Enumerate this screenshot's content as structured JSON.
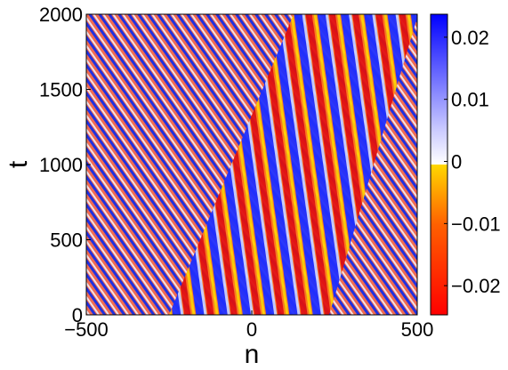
{
  "chart_data": {
    "type": "heatmap",
    "xlabel": "n",
    "ylabel": "t",
    "xlim": [
      -500,
      500
    ],
    "xticks": [
      {
        "value": -500,
        "label": "−500"
      },
      0,
      500
    ],
    "ylim": [
      0,
      2000
    ],
    "yticks": [
      0,
      500,
      1000,
      1500,
      2000
    ],
    "clim": [
      -0.0247,
      0.0237
    ],
    "cticks": [
      {
        "value": -0.02,
        "label": "−0.02"
      },
      {
        "value": -0.01,
        "label": "−0.01"
      },
      0,
      0.01,
      0.02
    ]
  }
}
